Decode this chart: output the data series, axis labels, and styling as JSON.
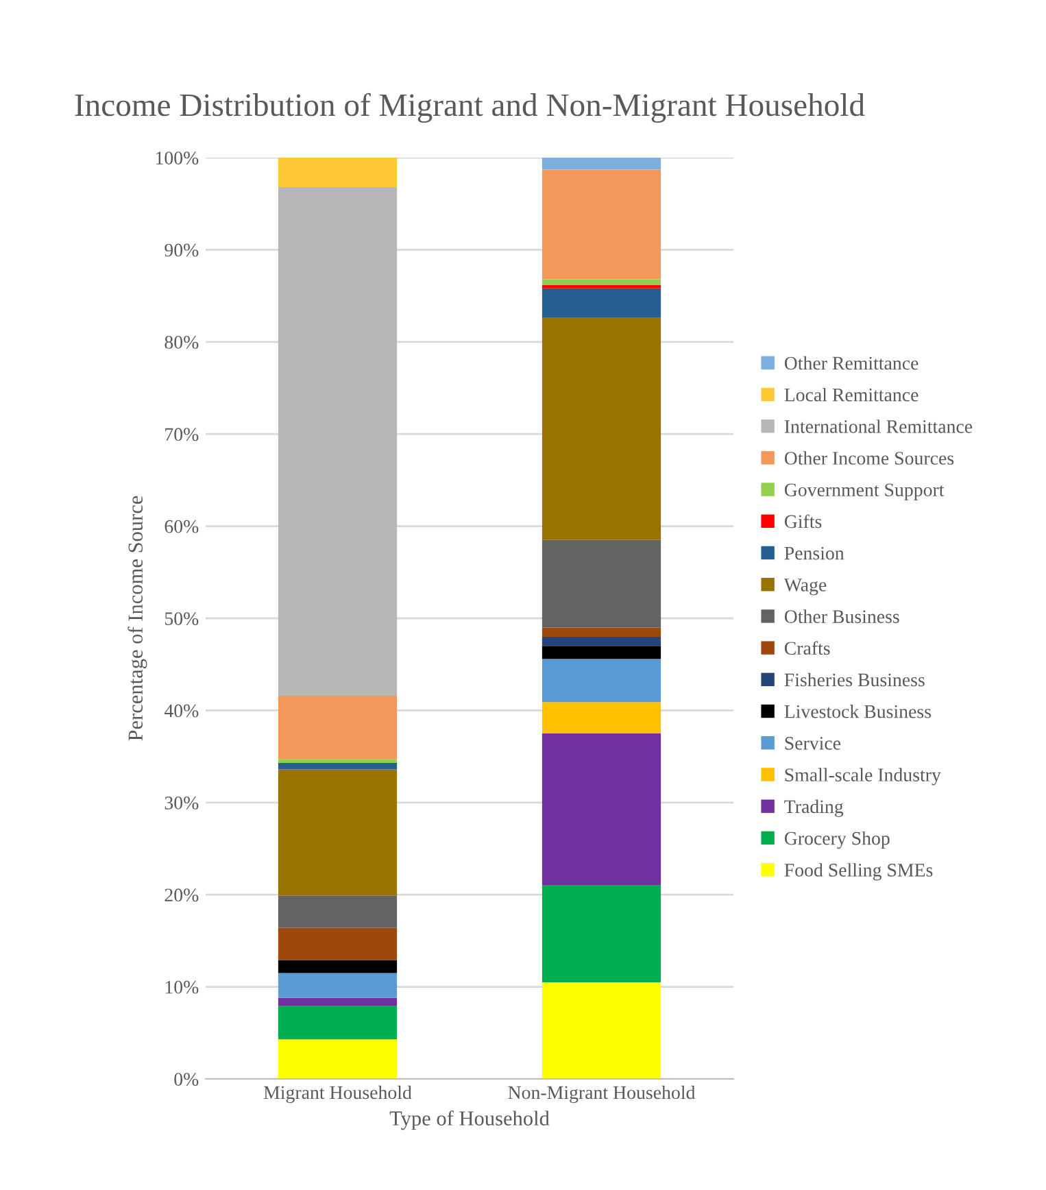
{
  "chart_data": {
    "type": "bar",
    "stacked": true,
    "title": "Income Distribution of Migrant and Non-Migrant Household",
    "xlabel": "Type of Household",
    "ylabel": "Percentage of Income Source",
    "categories": [
      "Migrant Household",
      "Non-Migrant Household"
    ],
    "series": [
      {
        "name": "Food Selling SMEs",
        "color": "#ffff00",
        "values": [
          4.3,
          10.5
        ]
      },
      {
        "name": "Grocery Shop",
        "color": "#00b050",
        "values": [
          3.6,
          10.5
        ]
      },
      {
        "name": "Trading",
        "color": "#7030a0",
        "values": [
          0.9,
          16.5
        ]
      },
      {
        "name": "Small-scale Industry",
        "color": "#ffc000",
        "values": [
          0,
          3.4
        ]
      },
      {
        "name": "Service",
        "color": "#5b9bd5",
        "values": [
          2.7,
          4.7
        ]
      },
      {
        "name": "Livestock Business",
        "color": "#000000",
        "values": [
          1.4,
          1.4
        ]
      },
      {
        "name": "Fisheries Business",
        "color": "#264478",
        "values": [
          0,
          1.0
        ]
      },
      {
        "name": "Crafts",
        "color": "#9e480e",
        "values": [
          3.5,
          1.0
        ]
      },
      {
        "name": "Other Business",
        "color": "#636363",
        "values": [
          3.5,
          9.5
        ]
      },
      {
        "name": "Wage",
        "color": "#997300",
        "values": [
          13.7,
          24.1
        ]
      },
      {
        "name": "Pension",
        "color": "#255e91",
        "values": [
          0.7,
          3.2
        ]
      },
      {
        "name": "Gifts",
        "color": "#ff0000",
        "values": [
          0,
          0.4
        ]
      },
      {
        "name": "Government Support",
        "color": "#92d050",
        "values": [
          0.4,
          0.6
        ]
      },
      {
        "name": "Other Income Sources",
        "color": "#f4975a",
        "values": [
          6.9,
          11.9
        ]
      },
      {
        "name": "International Remittance",
        "color": "#b7b7b7",
        "values": [
          55.2,
          0
        ]
      },
      {
        "name": "Local Remittance",
        "color": "#ffc935",
        "values": [
          3.2,
          0
        ]
      },
      {
        "name": "Other Remittance",
        "color": "#7cafdd",
        "values": [
          0,
          1.3
        ]
      }
    ],
    "ylim": [
      0,
      100
    ],
    "yticks": [
      {
        "value": 0,
        "label": "0%"
      },
      {
        "value": 10,
        "label": "10%"
      },
      {
        "value": 20,
        "label": "20%"
      },
      {
        "value": 30,
        "label": "30%"
      },
      {
        "value": 40,
        "label": "40%"
      },
      {
        "value": 50,
        "label": "50%"
      },
      {
        "value": 60,
        "label": "60%"
      },
      {
        "value": 70,
        "label": "70%"
      },
      {
        "value": 80,
        "label": "80%"
      },
      {
        "value": 90,
        "label": "90%"
      },
      {
        "value": 100,
        "label": "100%"
      }
    ],
    "grid": "y",
    "legend": "right"
  }
}
